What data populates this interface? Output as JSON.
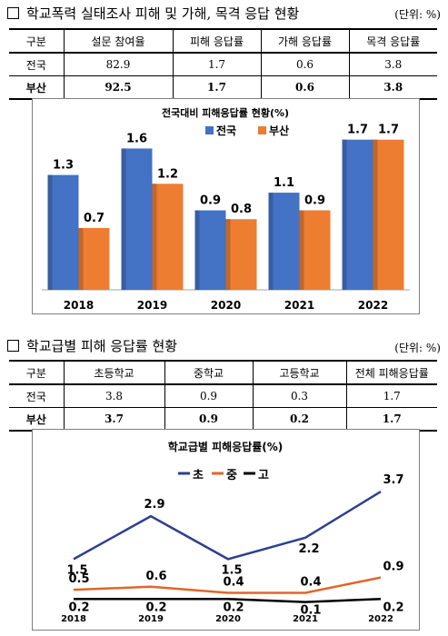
{
  "section1": {
    "title": "학교폭력 실태조사 피해 및 가해, 목격 응답 현황",
    "unit": "(단위: %)",
    "headers": [
      "구분",
      "설문 참여율",
      "피해 응답률",
      "가해 응답률",
      "목격 응답률"
    ],
    "rows": [
      [
        "전국",
        "82.9",
        "1.7",
        "0.6",
        "3.8"
      ],
      [
        "부산",
        "92.5",
        "1.7",
        "0.6",
        "3.8"
      ]
    ]
  },
  "section2": {
    "title": "학교급별 피해 응답률 현황",
    "unit": "(단위: %)",
    "headers": [
      "구분",
      "초등학교",
      "중학교",
      "고등학교",
      "전체 피해응답률"
    ],
    "rows": [
      [
        "전국",
        "3.8",
        "0.9",
        "0.3",
        "1.7"
      ],
      [
        "부산",
        "3.7",
        "0.9",
        "0.2",
        "1.7"
      ]
    ]
  },
  "chart_data": [
    {
      "type": "bar",
      "title": "전국대비 피해응답률 현황(%)",
      "categories": [
        "2018",
        "2019",
        "2020",
        "2021",
        "2022"
      ],
      "series": [
        {
          "name": "전국",
          "color": "#4472C4",
          "values": [
            1.3,
            1.6,
            0.9,
            1.1,
            1.7
          ]
        },
        {
          "name": "부산",
          "color": "#ED7D31",
          "values": [
            0.7,
            1.2,
            0.8,
            0.9,
            1.7
          ]
        }
      ],
      "ylim": [
        0,
        1.8
      ],
      "legend": "top",
      "grid": false
    },
    {
      "type": "line",
      "title": "학교급별 피해응답률(%)",
      "categories": [
        "2018",
        "2019",
        "2020",
        "2021",
        "2022"
      ],
      "series": [
        {
          "name": "초",
          "color": "#2F3F8F",
          "values": [
            1.5,
            2.9,
            1.5,
            2.2,
            3.7
          ]
        },
        {
          "name": "중",
          "color": "#E0662A",
          "values": [
            0.5,
            0.6,
            0.4,
            0.4,
            0.9
          ]
        },
        {
          "name": "고",
          "color": "#000000",
          "values": [
            0.2,
            0.2,
            0.2,
            0.1,
            0.2
          ]
        }
      ],
      "ylim": [
        0,
        4.0
      ],
      "legend": "top",
      "grid": false
    }
  ]
}
